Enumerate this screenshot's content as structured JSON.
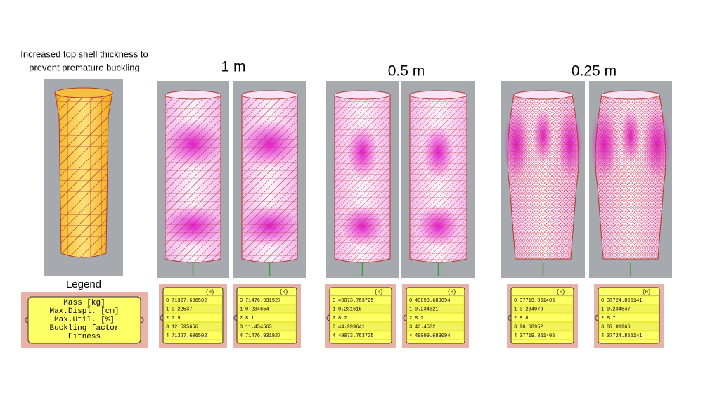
{
  "caption": [
    "Increased top shell thickness to",
    "prevent premature buckling"
  ],
  "groups": [
    "1 m",
    "0.5 m",
    "0.25 m"
  ],
  "legend": {
    "title": "Legend",
    "lines": [
      "Mass [kg]",
      "Max.Displ. [cm]",
      "Max.Util. [%]",
      "Buckling factor",
      "Fitness"
    ]
  },
  "panels": [
    {
      "header": "{0}",
      "rows": [
        {
          "index": "0",
          "value": "71327.606502"
        },
        {
          "index": "1",
          "value": "0.22537"
        },
        {
          "index": "2",
          "value": "7.9"
        },
        {
          "index": "3",
          "value": "12.595656"
        },
        {
          "index": "4",
          "value": "71327.606502"
        }
      ]
    },
    {
      "header": "{0}",
      "rows": [
        {
          "index": "0",
          "value": "71476.931927"
        },
        {
          "index": "1",
          "value": "0.234654"
        },
        {
          "index": "2",
          "value": "8.1"
        },
        {
          "index": "3",
          "value": "11.454565"
        },
        {
          "index": "4",
          "value": "71476.931927"
        }
      ]
    },
    {
      "header": "{0}",
      "rows": [
        {
          "index": "0",
          "value": "49073.763725"
        },
        {
          "index": "1",
          "value": "0.231615"
        },
        {
          "index": "2",
          "value": "8.2"
        },
        {
          "index": "3",
          "value": "44.999641"
        },
        {
          "index": "4",
          "value": "49073.763725"
        }
      ]
    },
    {
      "header": "{0}",
      "rows": [
        {
          "index": "0",
          "value": "49099.689094"
        },
        {
          "index": "1",
          "value": "0.234321"
        },
        {
          "index": "2",
          "value": "8.2"
        },
        {
          "index": "3",
          "value": "43.4532"
        },
        {
          "index": "4",
          "value": "49099.689094"
        }
      ]
    },
    {
      "header": "{0}",
      "rows": [
        {
          "index": "0",
          "value": "37719.861405"
        },
        {
          "index": "1",
          "value": "0.234079"
        },
        {
          "index": "2",
          "value": "8.8"
        },
        {
          "index": "3",
          "value": "90.68952"
        },
        {
          "index": "4",
          "value": "37719.861405"
        }
      ]
    },
    {
      "header": "{0}",
      "rows": [
        {
          "index": "0",
          "value": "37724.855141"
        },
        {
          "index": "1",
          "value": "0.234847"
        },
        {
          "index": "2",
          "value": "8.7"
        },
        {
          "index": "3",
          "value": "87.01966"
        },
        {
          "index": "4",
          "value": "37724.855141"
        }
      ]
    }
  ]
}
